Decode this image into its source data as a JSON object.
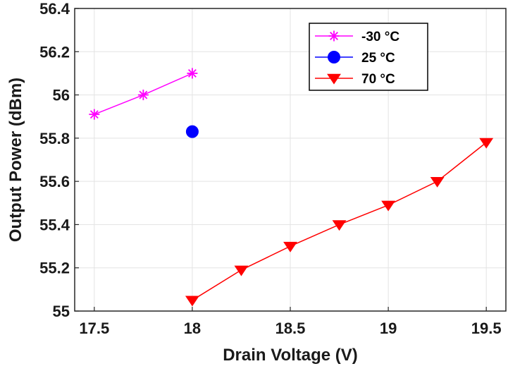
{
  "chart_data": {
    "type": "line",
    "xlabel": "Drain Voltage (V)",
    "ylabel": "Output Power (dBm)",
    "xlim": [
      17.4,
      19.6
    ],
    "ylim": [
      55,
      56.4
    ],
    "xticks": [
      17.5,
      18,
      18.5,
      19,
      19.5
    ],
    "xtick_labels": [
      "17.5",
      "18",
      "18.5",
      "19",
      "19.5"
    ],
    "yticks": [
      55,
      55.2,
      55.4,
      55.6,
      55.8,
      56,
      56.2,
      56.4
    ],
    "ytick_labels": [
      "55",
      "55.2",
      "55.4",
      "55.6",
      "55.8",
      "56",
      "56.2",
      "56.4"
    ],
    "grid": true,
    "legend_position": "top-right",
    "series": [
      {
        "name": "-30 °C",
        "color": "#ff00ff",
        "marker": "asterisk",
        "x": [
          17.5,
          17.75,
          18
        ],
        "y": [
          55.91,
          56.0,
          56.1
        ]
      },
      {
        "name": "25 °C",
        "color": "#0000ff",
        "marker": "circle",
        "x": [
          18
        ],
        "y": [
          55.83
        ]
      },
      {
        "name": "70 °C",
        "color": "#ff0000",
        "marker": "triangle-down",
        "x": [
          18,
          18.25,
          18.5,
          18.75,
          19,
          19.25,
          19.5
        ],
        "y": [
          55.05,
          55.19,
          55.3,
          55.4,
          55.49,
          55.6,
          55.78
        ]
      }
    ]
  }
}
